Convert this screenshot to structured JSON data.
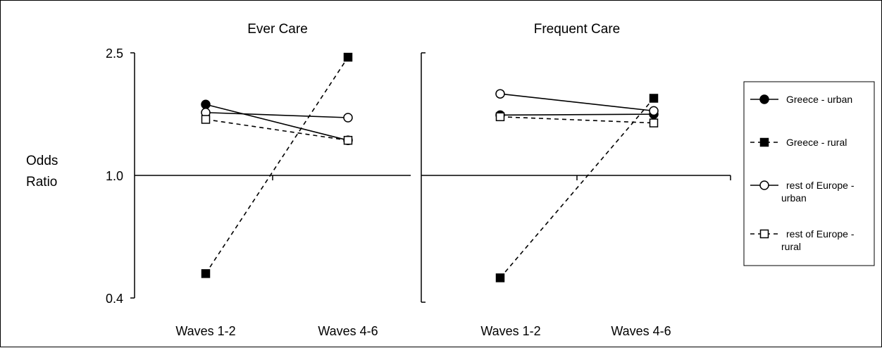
{
  "chart_data": {
    "type": "line",
    "ylabel": "Odds Ratio",
    "y_scale": "log",
    "ylim": [
      0.4,
      2.5
    ],
    "y_ticks": [
      {
        "value": 0.4,
        "label": "0.4"
      },
      {
        "value": 1.0,
        "label": "1.0"
      },
      {
        "value": 2.5,
        "label": "2.5"
      }
    ],
    "reference_line": 1.0,
    "categories": [
      "Waves 1-2",
      "Waves 4-6"
    ],
    "legend_position": "right",
    "panels": [
      {
        "title": "Ever Care",
        "series": [
          {
            "name": "Greece - urban",
            "values": [
              1.7,
              1.3
            ]
          },
          {
            "name": "Greece - rural",
            "values": [
              0.48,
              2.42
            ]
          },
          {
            "name": "rest of Europe - urban",
            "values": [
              1.6,
              1.54
            ]
          },
          {
            "name": "rest of Europe - rural",
            "values": [
              1.52,
              1.3
            ]
          }
        ]
      },
      {
        "title": "Frequent Care",
        "series": [
          {
            "name": "Greece - urban",
            "values": [
              1.57,
              1.58
            ]
          },
          {
            "name": "Greece - rural",
            "values": [
              0.465,
              1.78
            ]
          },
          {
            "name": "rest of Europe - urban",
            "values": [
              1.84,
              1.62
            ]
          },
          {
            "name": "rest of Europe - rural",
            "values": [
              1.55,
              1.48
            ]
          }
        ]
      }
    ],
    "series_styles": [
      {
        "line": "solid",
        "marker": "circle",
        "filled": true
      },
      {
        "line": "dashed",
        "marker": "square",
        "filled": true
      },
      {
        "line": "solid",
        "marker": "circle",
        "filled": false
      },
      {
        "line": "dashed",
        "marker": "square",
        "filled": false
      }
    ],
    "legend_lines": [
      [
        "Greece - urban"
      ],
      [
        "Greece - rural"
      ],
      [
        "rest of Europe -",
        "urban"
      ],
      [
        "rest of Europe -",
        "rural"
      ]
    ],
    "colors": {
      "line": "#000000",
      "background": "#ffffff"
    }
  }
}
